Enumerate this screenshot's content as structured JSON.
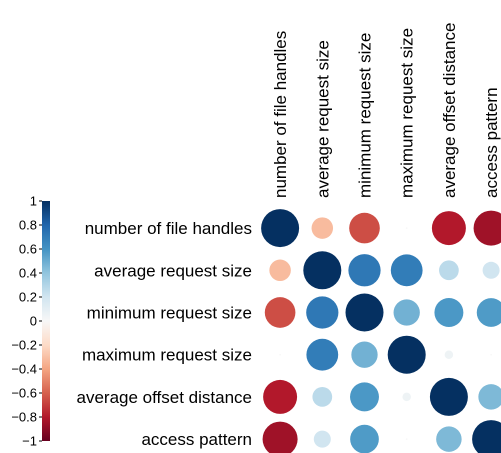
{
  "chart_data": {
    "type": "heatmap",
    "variables": [
      "number of file handles",
      "average request size",
      "minimum request size",
      "maximum request size",
      "average offset distance",
      "access pattern"
    ],
    "matrix": [
      [
        1.0,
        -0.32,
        -0.65,
        0.0,
        -0.8,
        -0.85
      ],
      [
        -0.32,
        1.0,
        0.72,
        0.7,
        0.27,
        0.2
      ],
      [
        -0.65,
        0.72,
        1.0,
        0.48,
        0.58,
        0.57
      ],
      [
        0.0,
        0.7,
        0.48,
        1.0,
        0.05,
        0.0
      ],
      [
        -0.8,
        0.27,
        0.58,
        0.05,
        1.0,
        0.45
      ],
      [
        -0.85,
        0.2,
        0.57,
        0.0,
        0.45,
        1.0
      ]
    ],
    "colorbar": {
      "range": [
        -1,
        1
      ],
      "ticks": [
        "1",
        "0.8",
        "0.6",
        "0.4",
        "0.2",
        "0",
        "−0.2",
        "−0.4",
        "−0.6",
        "−0.8",
        "−1"
      ],
      "colors": {
        "negative": "#67001f",
        "mid": "#f7f7f7",
        "positive": "#053061"
      }
    },
    "legend": "left"
  }
}
